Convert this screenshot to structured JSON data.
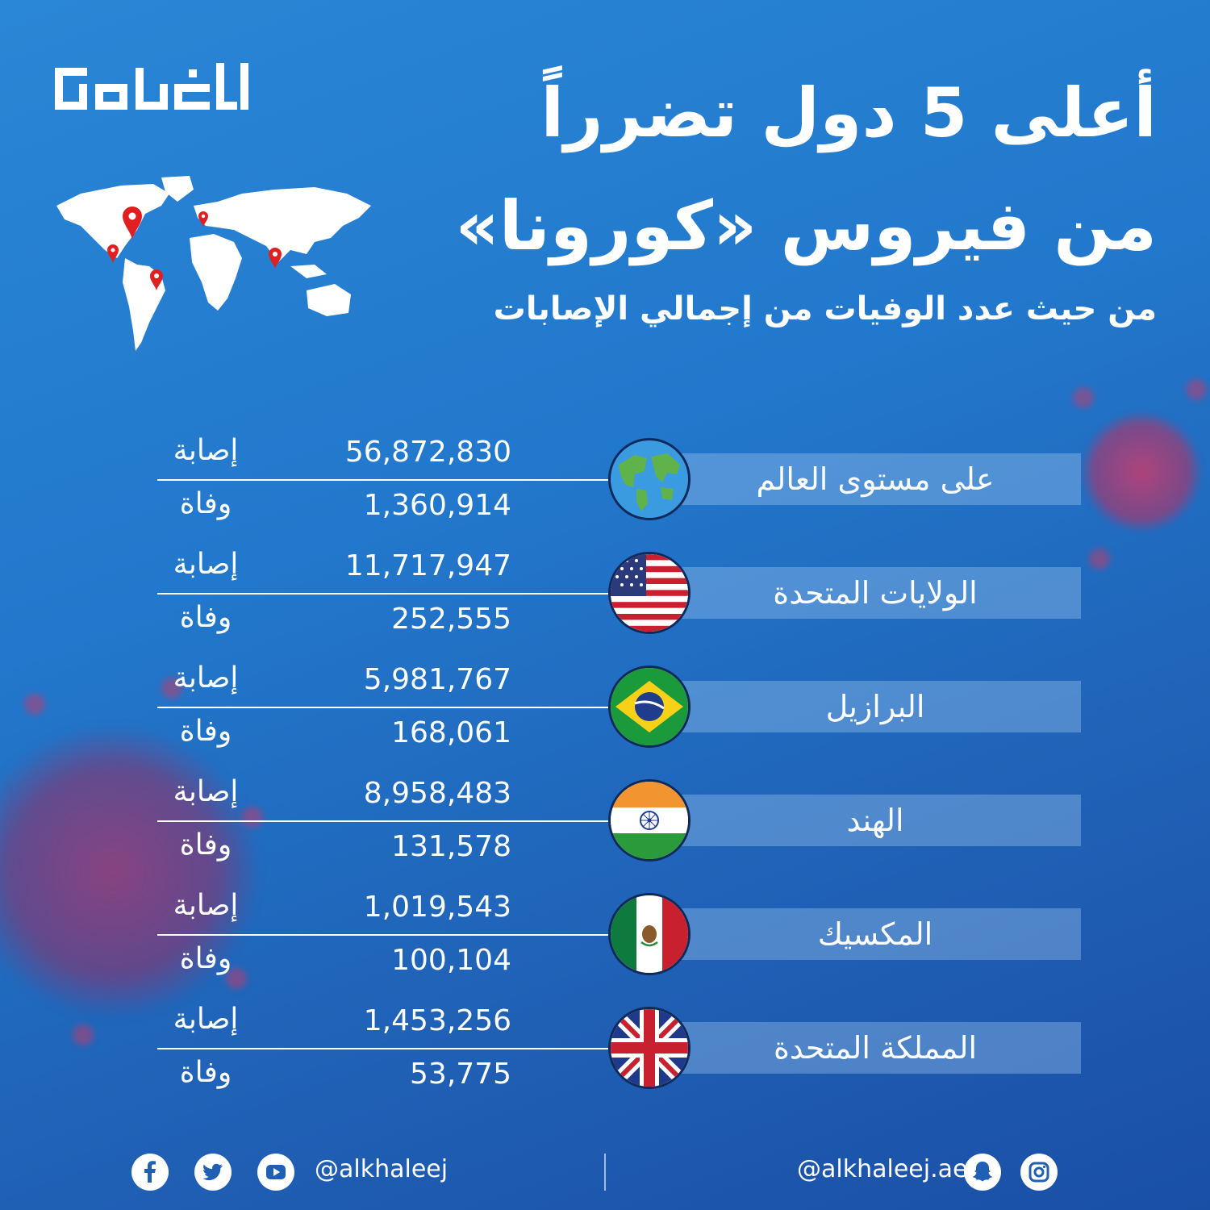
{
  "header": {
    "title_line1": "أعلى 5 دول تضرراً",
    "title_line2": "من فيروس «كورونا»",
    "subtitle": "من حيث عدد الوفيات من إجمالي الإصابات",
    "logo_text": "الخليج"
  },
  "labels": {
    "cases": "إصابة",
    "deaths": "وفاة"
  },
  "rows": [
    {
      "name": "على مستوى العالم",
      "cases": "56,872,830",
      "deaths": "1,360,914",
      "flag": "globe-icon"
    },
    {
      "name": "الولايات المتحدة",
      "cases": "11,717,947",
      "deaths": "252,555",
      "flag": "usa-flag"
    },
    {
      "name": "البرازيل",
      "cases": "5,981,767",
      "deaths": "168,061",
      "flag": "brazil-flag"
    },
    {
      "name": "الهند",
      "cases": "8,958,483",
      "deaths": "131,578",
      "flag": "india-flag"
    },
    {
      "name": "المكسيك",
      "cases": "1,019,543",
      "deaths": "100,104",
      "flag": "mexico-flag"
    },
    {
      "name": "المملكة المتحدة",
      "cases": "1,453,256",
      "deaths": "53,775",
      "flag": "uk-flag"
    }
  ],
  "footer": {
    "left_handle": "@alkhaleej",
    "right_handle": "@alkhaleej.ae",
    "left_icons": [
      "facebook-icon",
      "twitter-icon",
      "youtube-icon"
    ],
    "right_icons": [
      "snapchat-icon",
      "instagram-icon"
    ]
  },
  "colors": {
    "background": "#2278cc",
    "pin": "#e02020",
    "virus": "#b83c6e"
  }
}
